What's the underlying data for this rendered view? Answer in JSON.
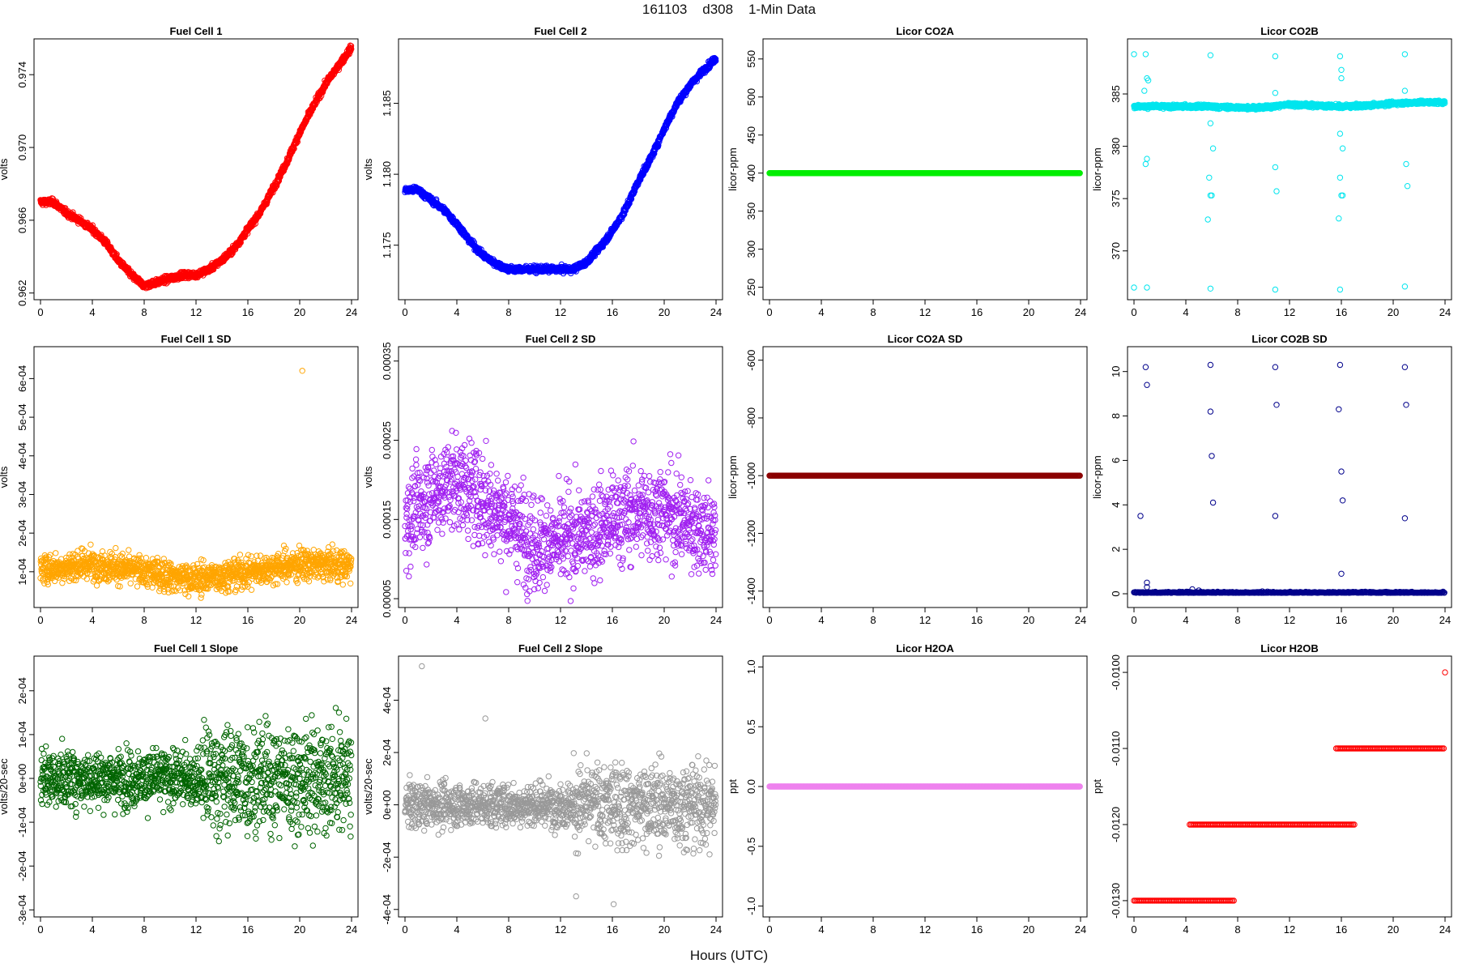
{
  "header": {
    "title": "161103    d308    1-Min Data",
    "x_axis_label": "Hours (UTC)"
  },
  "chart_data": [
    {
      "id": "fc1",
      "type": "scatter",
      "title": "Fuel Cell 1",
      "ylabel": "volts",
      "color": "#ff0000",
      "xlim": [
        0,
        24
      ],
      "ylim": [
        0.9619,
        0.9757
      ],
      "xticks": [
        0,
        4,
        8,
        12,
        16,
        20,
        24
      ],
      "xtick_labels": [
        "0",
        "4",
        "8",
        "12",
        "16",
        "20",
        "24"
      ],
      "yticks": [
        0.962,
        0.966,
        0.97,
        0.974
      ],
      "ytick_labels": [
        "0.962",
        "0.966",
        "0.970",
        "0.974"
      ],
      "x": [
        0,
        1,
        2,
        3,
        4,
        5,
        6,
        7,
        8,
        9,
        10,
        11,
        12,
        13,
        14,
        15,
        16,
        17,
        18,
        19,
        20,
        21,
        22,
        23,
        24
      ],
      "y": [
        0.967,
        0.967,
        0.9664,
        0.966,
        0.9655,
        0.9648,
        0.9638,
        0.963,
        0.9624,
        0.9626,
        0.9628,
        0.963,
        0.963,
        0.9633,
        0.9638,
        0.9645,
        0.9655,
        0.9665,
        0.9678,
        0.9692,
        0.9708,
        0.9722,
        0.9735,
        0.9745,
        0.9755
      ],
      "noise": 0.00012
    },
    {
      "id": "fc2",
      "type": "scatter",
      "title": "Fuel Cell 2",
      "ylabel": "volts",
      "color": "#0000ff",
      "xlim": [
        0,
        24
      ],
      "ylim": [
        1.1715,
        1.1892
      ],
      "xticks": [
        0,
        4,
        8,
        12,
        16,
        20,
        24
      ],
      "xtick_labels": [
        "0",
        "4",
        "8",
        "12",
        "16",
        "20",
        "24"
      ],
      "yticks": [
        1.175,
        1.18,
        1.185
      ],
      "ytick_labels": [
        "1.175",
        "1.180",
        "1.185"
      ],
      "x": [
        0,
        1,
        2,
        3,
        4,
        5,
        6,
        7,
        8,
        9,
        10,
        11,
        12,
        13,
        14,
        15,
        16,
        17,
        18,
        19,
        20,
        21,
        22,
        23,
        24
      ],
      "y": [
        1.1789,
        1.1789,
        1.1782,
        1.1775,
        1.1765,
        1.1753,
        1.1743,
        1.1737,
        1.1733,
        1.1733,
        1.1733,
        1.1733,
        1.1733,
        1.1733,
        1.1738,
        1.1748,
        1.176,
        1.1775,
        1.1795,
        1.1812,
        1.1832,
        1.185,
        1.1863,
        1.1873,
        1.1882
      ],
      "noise": 0.00015
    },
    {
      "id": "co2a",
      "type": "scatter",
      "title": "Licor CO2A",
      "ylabel": "licor-ppm",
      "color": "#00ee00",
      "xlim": [
        0,
        24
      ],
      "ylim": [
        240,
        570
      ],
      "xticks": [
        0,
        4,
        8,
        12,
        16,
        20,
        24
      ],
      "xtick_labels": [
        "0",
        "4",
        "8",
        "12",
        "16",
        "20",
        "24"
      ],
      "yticks": [
        250,
        300,
        350,
        400,
        450,
        500,
        550
      ],
      "ytick_labels": [
        "250",
        "300",
        "350",
        "400",
        "450",
        "500",
        "550"
      ],
      "constant": 400
    },
    {
      "id": "co2b",
      "type": "scatter",
      "title": "Licor CO2B",
      "ylabel": "licor-ppm",
      "color": "#00e5ee",
      "xlim": [
        0,
        24
      ],
      "ylim": [
        365.8,
        389.8
      ],
      "xticks": [
        0,
        4,
        8,
        12,
        16,
        20,
        24
      ],
      "xtick_labels": [
        "0",
        "4",
        "8",
        "12",
        "16",
        "20",
        "24"
      ],
      "yticks": [
        370,
        375,
        380,
        385
      ],
      "ytick_labels": [
        "370",
        "375",
        "380",
        "385"
      ],
      "x": [
        0,
        2,
        4,
        6,
        8,
        10,
        12,
        14,
        16,
        18,
        20,
        22,
        24
      ],
      "y": [
        383.8,
        383.8,
        383.8,
        383.8,
        383.7,
        383.7,
        384.0,
        383.9,
        383.8,
        383.9,
        384.1,
        384.2,
        384.2
      ],
      "noise": 0.12,
      "outliers": [
        [
          0,
          388.8
        ],
        [
          0,
          366.5
        ],
        [
          0.9,
          388.8
        ],
        [
          1.0,
          386.5
        ],
        [
          1.1,
          386.3
        ],
        [
          1.0,
          378.8
        ],
        [
          0.9,
          378.3
        ],
        [
          1.0,
          366.5
        ],
        [
          0.8,
          385.3
        ],
        [
          5.9,
          388.7
        ],
        [
          5.9,
          366.4
        ],
        [
          5.9,
          375.3
        ],
        [
          6.0,
          375.3
        ],
        [
          5.8,
          377.0
        ],
        [
          6.1,
          379.8
        ],
        [
          5.9,
          382.2
        ],
        [
          10.9,
          388.6
        ],
        [
          10.9,
          366.3
        ],
        [
          10.9,
          385.1
        ],
        [
          10.9,
          378.0
        ],
        [
          11.0,
          375.7
        ],
        [
          15.9,
          388.6
        ],
        [
          15.9,
          366.3
        ],
        [
          16.0,
          386.5
        ],
        [
          16.0,
          387.3
        ],
        [
          15.9,
          381.2
        ],
        [
          16.1,
          379.8
        ],
        [
          15.9,
          377.0
        ],
        [
          15.8,
          373.1
        ],
        [
          16.1,
          375.3
        ],
        [
          16.0,
          375.3
        ],
        [
          20.9,
          388.8
        ],
        [
          20.9,
          366.6
        ],
        [
          20.9,
          385.3
        ],
        [
          21.0,
          378.3
        ],
        [
          21.1,
          376.2
        ],
        [
          5.7,
          373.0
        ]
      ]
    },
    {
      "id": "fc1sd",
      "type": "scatter",
      "title": "Fuel Cell 1 SD",
      "ylabel": "volts",
      "color": "#ffa500",
      "xlim": [
        0,
        24
      ],
      "ylim": [
        2e-05,
        0.00067
      ],
      "xticks": [
        0,
        4,
        8,
        12,
        16,
        20,
        24
      ],
      "xtick_labels": [
        "0",
        "4",
        "8",
        "12",
        "16",
        "20",
        "24"
      ],
      "yticks": [
        0.0001,
        0.0002,
        0.0003,
        0.0004,
        0.0005,
        0.0006
      ],
      "ytick_labels": [
        "1e-04",
        "2e-04",
        "3e-04",
        "4e-04",
        "5e-04",
        "6e-04"
      ],
      "x": [
        0,
        4,
        8,
        12,
        16,
        20,
        24
      ],
      "y": [
        0.000105,
        0.00012,
        0.0001,
        8e-05,
        0.0001,
        0.00012,
        0.000115
      ],
      "noise": 2.8e-05,
      "outliers": [
        [
          20.2,
          0.00062
        ]
      ]
    },
    {
      "id": "fc2sd",
      "type": "scatter",
      "title": "Fuel Cell 2 SD",
      "ylabel": "volts",
      "color": "#a020f0",
      "xlim": [
        0,
        24
      ],
      "ylim": [
        4.5e-05,
        0.000362
      ],
      "xticks": [
        0,
        4,
        8,
        12,
        16,
        20,
        24
      ],
      "xtick_labels": [
        "0",
        "4",
        "8",
        "12",
        "16",
        "20",
        "24"
      ],
      "yticks": [
        5e-05,
        0.00015,
        0.00025,
        0.00035
      ],
      "ytick_labels": [
        "0.00005",
        "0.00015",
        "0.00025",
        "0.00035"
      ],
      "x": [
        0,
        2,
        4,
        6,
        8,
        10,
        12,
        14,
        16,
        18,
        20,
        22,
        24
      ],
      "y": [
        0.00015,
        0.00018,
        0.0002,
        0.000175,
        0.00015,
        0.00012,
        0.00012,
        0.00013,
        0.00015,
        0.00016,
        0.00016,
        0.000145,
        0.00013
      ],
      "noise": 4.2e-05
    },
    {
      "id": "co2asd",
      "type": "scatter",
      "title": "Licor CO2A SD",
      "ylabel": "licor-ppm",
      "color": "#8b0000",
      "xlim": [
        0,
        24
      ],
      "ylim": [
        -1440,
        -570
      ],
      "xticks": [
        0,
        4,
        8,
        12,
        16,
        20,
        24
      ],
      "xtick_labels": [
        "0",
        "4",
        "8",
        "12",
        "16",
        "20",
        "24"
      ],
      "yticks": [
        -1400,
        -1200,
        -1000,
        -800,
        -600
      ],
      "ytick_labels": [
        "-1400",
        "-1200",
        "-1000",
        "-800",
        "-600"
      ],
      "constant": -1000
    },
    {
      "id": "co2bsd",
      "type": "scatter",
      "title": "Licor CO2B SD",
      "ylabel": "licor-ppm",
      "color": "#00008b",
      "xlim": [
        0,
        24
      ],
      "ylim": [
        -0.4,
        10.9
      ],
      "xticks": [
        0,
        4,
        8,
        12,
        16,
        20,
        24
      ],
      "xtick_labels": [
        "0",
        "4",
        "8",
        "12",
        "16",
        "20",
        "24"
      ],
      "yticks": [
        0,
        2,
        4,
        6,
        8,
        10
      ],
      "ytick_labels": [
        "0",
        "2",
        "4",
        "6",
        "8",
        "10"
      ],
      "constant": 0.04,
      "noise": 0.03,
      "outliers": [
        [
          0.5,
          3.5
        ],
        [
          0.9,
          10.2
        ],
        [
          1.0,
          9.4
        ],
        [
          1.0,
          0.3
        ],
        [
          1.0,
          0.5
        ],
        [
          5.9,
          10.3
        ],
        [
          5.9,
          8.2
        ],
        [
          6.0,
          6.2
        ],
        [
          6.1,
          4.1
        ],
        [
          10.9,
          10.2
        ],
        [
          11.0,
          8.5
        ],
        [
          10.9,
          3.5
        ],
        [
          15.9,
          10.3
        ],
        [
          15.8,
          8.3
        ],
        [
          16.0,
          5.5
        ],
        [
          16.1,
          4.2
        ],
        [
          16.0,
          0.9
        ],
        [
          20.9,
          10.2
        ],
        [
          21.0,
          8.5
        ],
        [
          20.9,
          3.4
        ],
        [
          4.5,
          0.2
        ],
        [
          5.0,
          0.15
        ]
      ]
    },
    {
      "id": "fc1slope",
      "type": "scatter",
      "title": "Fuel Cell 1 Slope",
      "ylabel": "volts/20-sec",
      "color": "#006400",
      "xlim": [
        0,
        24
      ],
      "ylim": [
        -0.000305,
        0.000268
      ],
      "xticks": [
        0,
        4,
        8,
        12,
        16,
        20,
        24
      ],
      "xtick_labels": [
        "0",
        "4",
        "8",
        "12",
        "16",
        "20",
        "24"
      ],
      "yticks": [
        -0.0003,
        -0.0002,
        -0.0001,
        0,
        0.0001,
        0.0002
      ],
      "ytick_labels": [
        "-3e-04",
        "-2e-04",
        "-1e-04",
        "0e+00",
        "1e-04",
        "2e-04"
      ],
      "x": [
        0,
        12,
        13,
        24
      ],
      "y": [
        0,
        0,
        0,
        0
      ],
      "noise_segments": [
        [
          0,
          12.5,
          4.5e-05
        ],
        [
          12.5,
          24,
          8.5e-05
        ]
      ]
    },
    {
      "id": "fc2slope",
      "type": "scatter",
      "title": "Fuel Cell 2 Slope",
      "ylabel": "volts/20-sec",
      "color": "#999999",
      "xlim": [
        0,
        24
      ],
      "ylim": [
        -0.00041,
        0.00055
      ],
      "xticks": [
        0,
        4,
        8,
        12,
        16,
        20,
        24
      ],
      "xtick_labels": [
        "0",
        "4",
        "8",
        "12",
        "16",
        "20",
        "24"
      ],
      "yticks": [
        -0.0004,
        -0.0002,
        0,
        0.0002,
        0.0004
      ],
      "ytick_labels": [
        "-4e-04",
        "-2e-04",
        "0e+00",
        "2e-04",
        "4e-04"
      ],
      "x": [
        0,
        24
      ],
      "y": [
        0,
        0
      ],
      "noise_segments": [
        [
          0,
          13,
          6e-05
        ],
        [
          13,
          24,
          0.00011
        ]
      ],
      "outliers": [
        [
          1.3,
          0.00053
        ],
        [
          13.2,
          -0.00035
        ],
        [
          16.1,
          -0.00038
        ],
        [
          6.2,
          0.00033
        ]
      ]
    },
    {
      "id": "h2oa",
      "type": "scatter",
      "title": "Licor H2OA",
      "ylabel": "ppt",
      "color": "#ee82ee",
      "xlim": [
        0,
        24
      ],
      "ylim": [
        -1.05,
        1.05
      ],
      "xticks": [
        0,
        4,
        8,
        12,
        16,
        20,
        24
      ],
      "xtick_labels": [
        "0",
        "4",
        "8",
        "12",
        "16",
        "20",
        "24"
      ],
      "yticks": [
        -1.0,
        -0.5,
        0.0,
        0.5,
        1.0
      ],
      "ytick_labels": [
        "-1.0",
        "-0.5",
        "0.0",
        "0.5",
        "1.0"
      ],
      "constant": 0.0
    },
    {
      "id": "h2ob",
      "type": "scatter",
      "title": "Licor H2OB",
      "ylabel": "ppt",
      "color": "#ff0000",
      "xlim": [
        0,
        24
      ],
      "ylim": [
        -0.01315,
        -0.00985
      ],
      "xticks": [
        0,
        4,
        8,
        12,
        16,
        20,
        24
      ],
      "xtick_labels": [
        "0",
        "4",
        "8",
        "12",
        "16",
        "20",
        "24"
      ],
      "yticks": [
        -0.013,
        -0.012,
        -0.011,
        -0.01
      ],
      "ytick_labels": [
        "-0.0130",
        "-0.0120",
        "-0.0110",
        "-0.0100"
      ],
      "steps": [
        [
          0,
          7.7,
          -0.013
        ],
        [
          4.3,
          17.0,
          -0.012
        ],
        [
          15.6,
          24,
          -0.011
        ]
      ],
      "outliers": [
        [
          24,
          -0.01
        ]
      ]
    }
  ]
}
